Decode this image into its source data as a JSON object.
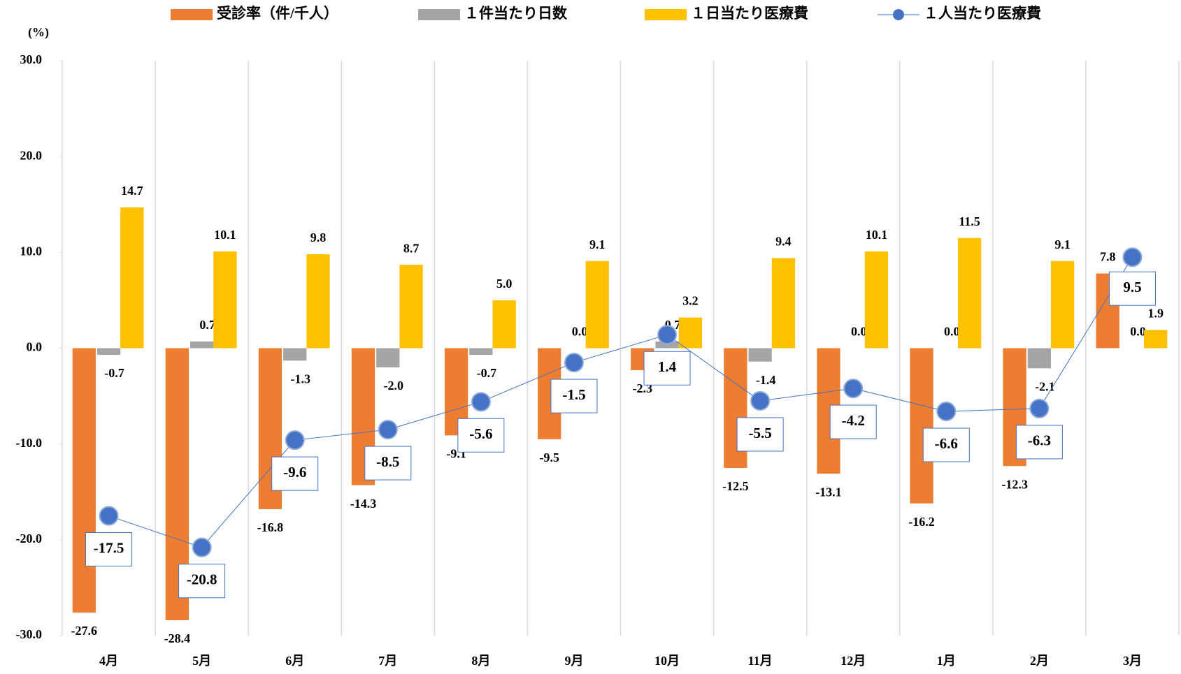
{
  "chart_data": {
    "type": "bar",
    "y_label": "(%)",
    "categories": [
      "4月",
      "5月",
      "6月",
      "7月",
      "8月",
      "9月",
      "10月",
      "11月",
      "12月",
      "1月",
      "2月",
      "3月"
    ],
    "series": [
      {
        "name": "受診率（件/千人）",
        "color": "#ed7d31",
        "type": "bar",
        "values": [
          -27.6,
          -28.4,
          -16.8,
          -14.3,
          -9.1,
          -9.5,
          -2.3,
          -12.5,
          -13.1,
          -16.2,
          -12.3,
          7.8
        ],
        "value_labels": [
          "-27.6",
          "-28.4",
          "-16.8",
          "-14.3",
          "-9.1",
          "-9.5",
          "-2.3",
          "-12.5",
          "-13.1",
          "-16.2",
          "-12.3",
          "7.8"
        ]
      },
      {
        "name": "１件当たり日数",
        "color": "#a5a5a5",
        "type": "bar",
        "values": [
          -0.7,
          0.7,
          -1.3,
          -2.0,
          -0.7,
          0.0,
          0.7,
          -1.4,
          0.0,
          0.0,
          -2.1,
          0.0
        ],
        "value_labels": [
          "-0.7",
          "0.7",
          "-1.3",
          "-2.0",
          "-0.7",
          "0.0",
          "0.7",
          "-1.4",
          "0.0",
          "0.0",
          "-2.1",
          "0.0"
        ]
      },
      {
        "name": "１日当たり医療費",
        "color": "#ffc000",
        "type": "bar",
        "values": [
          14.7,
          10.1,
          9.8,
          8.7,
          5.0,
          9.1,
          3.2,
          9.4,
          10.1,
          11.5,
          9.1,
          1.9
        ],
        "value_labels": [
          "14.7",
          "10.1",
          "9.8",
          "8.7",
          "5.0",
          "9.1",
          "3.2",
          "9.4",
          "10.1",
          "11.5",
          "9.1",
          "1.9"
        ]
      },
      {
        "name": "１人当たり医療費",
        "color": "#4472c4",
        "type": "line",
        "values": [
          -17.5,
          -20.8,
          -9.6,
          -8.5,
          -5.6,
          -1.5,
          1.4,
          -5.5,
          -4.2,
          -6.6,
          -6.3,
          9.5
        ],
        "value_labels": [
          "-17.5",
          "-20.8",
          "-9.6",
          "-8.5",
          "-5.6",
          "-1.5",
          "1.4",
          "-5.5",
          "-4.2",
          "-6.6",
          "-6.3",
          "9.5"
        ]
      }
    ],
    "ylim": [
      -30,
      30
    ],
    "yticks": [
      {
        "value": 30,
        "label": "30.0"
      },
      {
        "value": 20,
        "label": "20.0"
      },
      {
        "value": 10,
        "label": "10.0"
      },
      {
        "value": 0,
        "label": "0.0"
      },
      {
        "value": -10,
        "label": "-10.0"
      },
      {
        "value": -20,
        "label": "-20.0"
      },
      {
        "value": -30,
        "label": "-30.0"
      }
    ],
    "grid": false
  }
}
